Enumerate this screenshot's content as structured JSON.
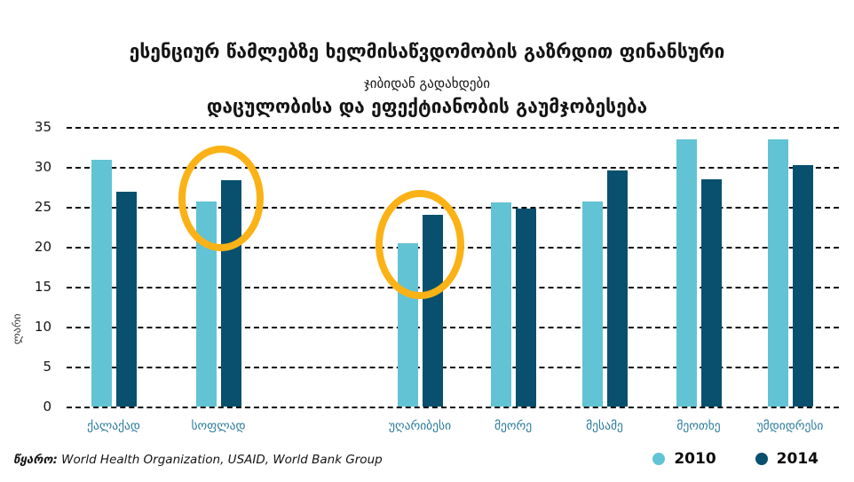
{
  "title": {
    "line1": "ესენციურ წამლებზე ხელმისაწვდომობის გაზრდით ფინანსური",
    "line2": "დაცულობისა და ეფექტიანობის გაუმჯობესება",
    "subtitle": "ჯიბიდან გადახდები"
  },
  "chart_data": {
    "type": "bar",
    "categories": [
      "ქალაქად",
      "სოფლად",
      "უღარიბესი",
      "მეორე",
      "მესამე",
      "მეოთხე",
      "უმდიდრესი"
    ],
    "series": [
      {
        "name": "2010",
        "color": "#62C3D4",
        "values": [
          30.9,
          25.7,
          20.5,
          25.6,
          25.7,
          33.4,
          33.4
        ]
      },
      {
        "name": "2014",
        "color": "#09506E",
        "values": [
          26.9,
          28.3,
          24.0,
          24.8,
          29.6,
          28.4,
          30.2
        ]
      }
    ],
    "title": "ესენციურ წამლებზე ხელმისაწვდომობის გაზრდით ფინანსური დაცულობისა და ეფექტიანობის გაუმჯობესება",
    "subtitle": "ჯიბიდან გადახდები",
    "xlabel": "",
    "ylabel": "ლარი",
    "ylim": [
      0,
      35
    ],
    "yticks": [
      0,
      5,
      10,
      15,
      20,
      25,
      30,
      35
    ],
    "grid": "horizontal-dashed",
    "legend_position": "bottom-right",
    "annotations": [
      {
        "type": "ellipse",
        "target_category": "სოფლად",
        "color": "#FBB216"
      },
      {
        "type": "ellipse",
        "target_category": "უღარიბესი",
        "color": "#FBB216"
      }
    ]
  },
  "source": {
    "label": "წყარო:",
    "text": " World Health Organization, USAID, World Bank Group"
  },
  "legend": {
    "items": [
      {
        "label": "2010",
        "color": "#62C3D4"
      },
      {
        "label": "2014",
        "color": "#09506E"
      }
    ]
  }
}
